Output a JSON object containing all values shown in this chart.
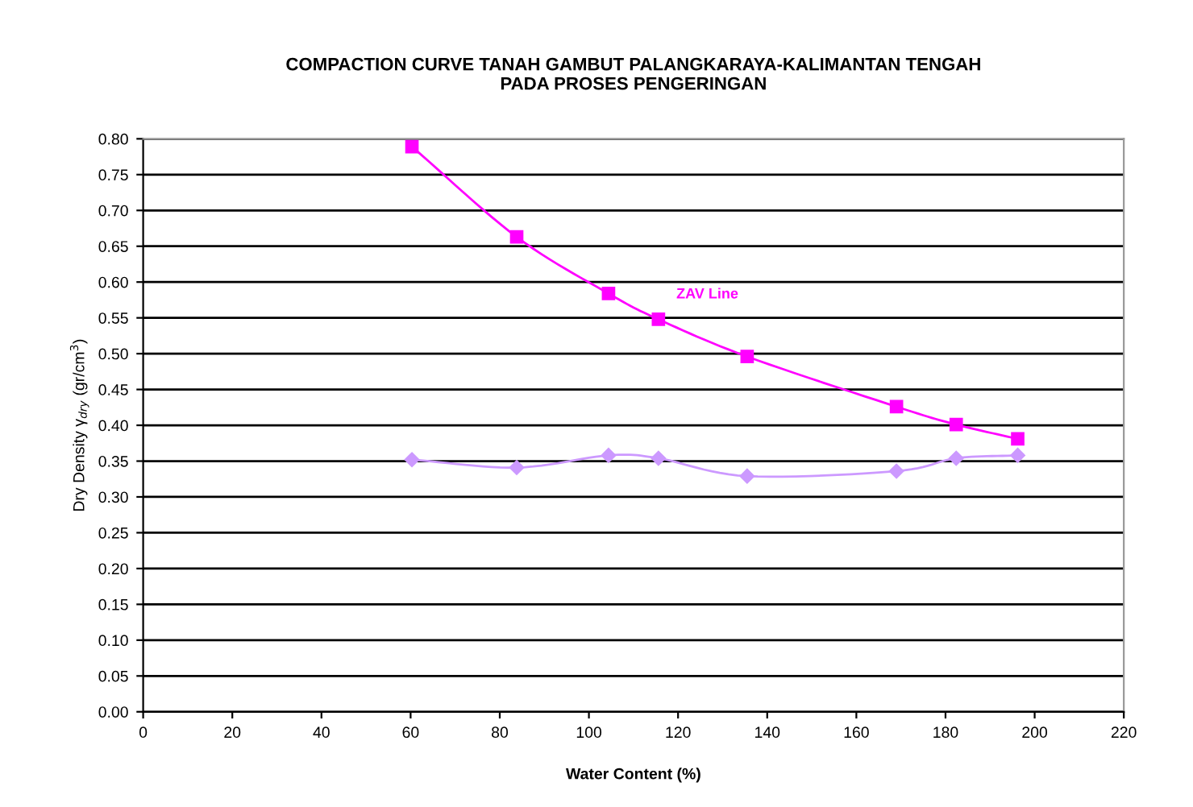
{
  "chart_data": {
    "type": "line",
    "title": "COMPACTION CURVE TANAH GAMBUT PALANGKARAYA-KALIMANTAN TENGAH\nPADA PROSES PENGERINGAN",
    "xlabel": "Water Content (%)",
    "ylabel": "Dry Density γ$_{dry}$ (gr/cm$^{3}$)",
    "x": [
      60.3,
      83.8,
      104.4,
      115.6,
      135.5,
      169,
      182.4,
      196.2
    ],
    "series": [
      {
        "name": "ZAV Line",
        "color": "#ff00ff",
        "marker": "square",
        "values": [
          0.789,
          0.663,
          0.584,
          0.548,
          0.496,
          0.426,
          0.401,
          0.381
        ]
      },
      {
        "color": "#cc99ff",
        "marker": "diamond",
        "values": [
          0.352,
          0.341,
          0.358,
          0.354,
          0.329,
          0.336,
          0.354,
          0.358
        ]
      }
    ],
    "xlim": [
      0,
      220
    ],
    "xticks": [
      0,
      20,
      40,
      60,
      80,
      100,
      120,
      140,
      160,
      180,
      200,
      220
    ],
    "ylim": [
      0,
      0.8
    ],
    "yticks": [
      {
        "value": 0,
        "label": "0.00"
      },
      {
        "value": 0.05,
        "label": "0.05"
      },
      {
        "value": 0.1,
        "label": "0.10"
      },
      {
        "value": 0.15,
        "label": "0.15"
      },
      {
        "value": 0.2,
        "label": "0.20"
      },
      {
        "value": 0.25,
        "label": "0.25"
      },
      {
        "value": 0.3,
        "label": "0.30"
      },
      {
        "value": 0.35,
        "label": "0.35"
      },
      {
        "value": 0.4,
        "label": "0.40"
      },
      {
        "value": 0.45,
        "label": "0.45"
      },
      {
        "value": 0.5,
        "label": "0.50"
      },
      {
        "value": 0.55,
        "label": "0.55"
      },
      {
        "value": 0.6,
        "label": "0.60"
      },
      {
        "value": 0.65,
        "label": "0.65"
      },
      {
        "value": 0.7,
        "label": "0.70"
      },
      {
        "value": 0.75,
        "label": "0.75"
      },
      {
        "value": 0.8,
        "label": "0.80"
      }
    ],
    "grid": "y",
    "line_style": "solid"
  }
}
